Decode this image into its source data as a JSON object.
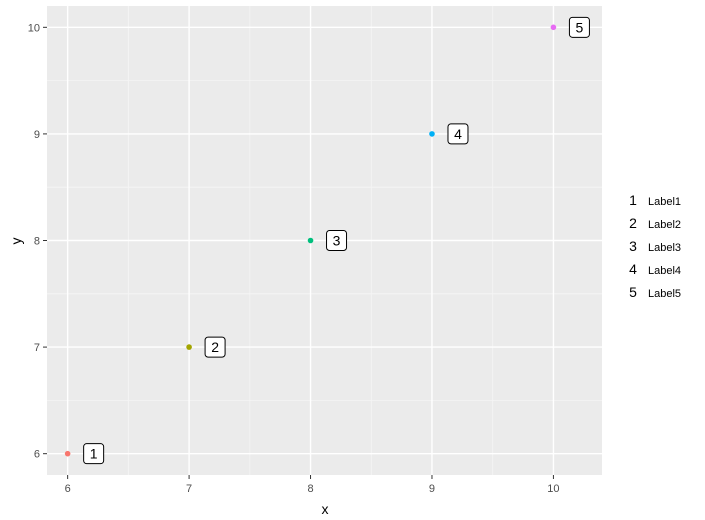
{
  "chart_data": {
    "type": "scatter",
    "xlabel": "x",
    "ylabel": "y",
    "xlim": [
      5.83,
      10.4
    ],
    "ylim": [
      5.8,
      10.2
    ],
    "x_ticks": [
      6,
      7,
      8,
      9,
      10
    ],
    "y_ticks": [
      6,
      7,
      8,
      9,
      10
    ],
    "x_minor_ticks": [
      6.5,
      7.5,
      8.5,
      9.5
    ],
    "y_minor_ticks": [
      6.5,
      7.5,
      8.5,
      9.5
    ],
    "grid": true,
    "legend_position": "right",
    "points": [
      {
        "x": 6,
        "y": 6,
        "label": "1",
        "color": "#F8766D"
      },
      {
        "x": 7,
        "y": 7,
        "label": "2",
        "color": "#A3A500"
      },
      {
        "x": 8,
        "y": 8,
        "label": "3",
        "color": "#00BF7D"
      },
      {
        "x": 9,
        "y": 9,
        "label": "4",
        "color": "#00B0F6"
      },
      {
        "x": 10,
        "y": 10,
        "label": "5",
        "color": "#E76BF3"
      }
    ],
    "legend": [
      {
        "key": "1",
        "label": "Label1"
      },
      {
        "key": "2",
        "label": "Label2"
      },
      {
        "key": "3",
        "label": "Label3"
      },
      {
        "key": "4",
        "label": "Label4"
      },
      {
        "key": "5",
        "label": "Label5"
      }
    ],
    "colors": {
      "panel_background": "#EBEBEB",
      "grid_major": "#FFFFFF",
      "tick_text": "#4D4D4D"
    }
  }
}
